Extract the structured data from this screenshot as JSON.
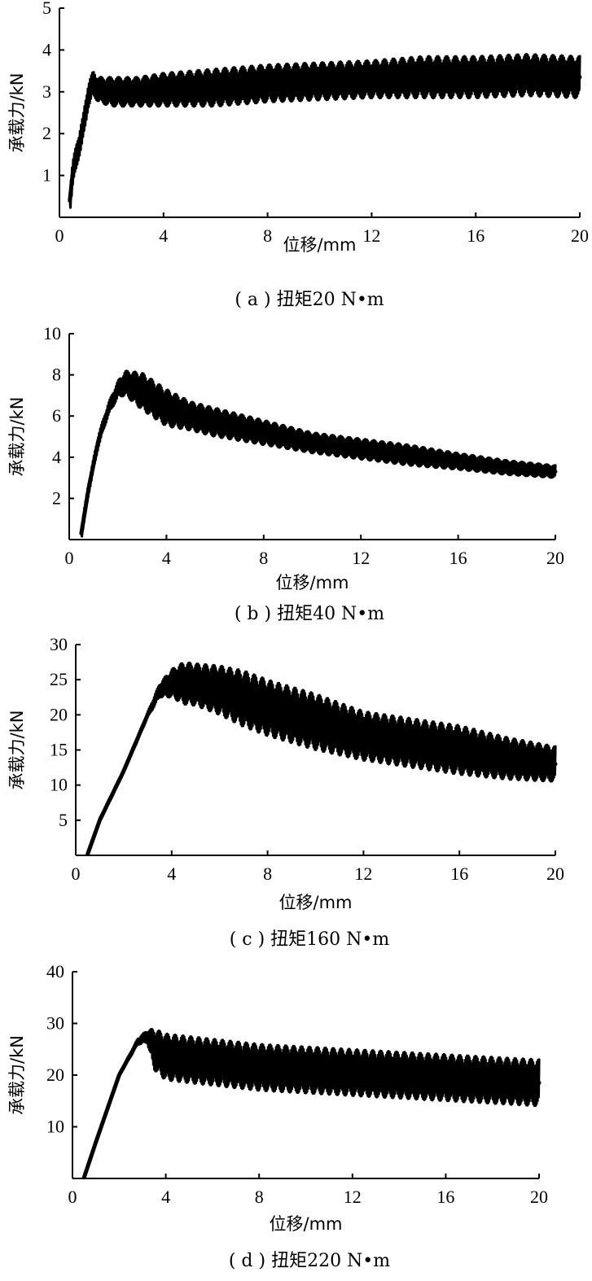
{
  "chart_data": [
    {
      "type": "line",
      "caption": "( a ) 扭矩20 N•m",
      "xlabel": "位移/mm",
      "ylabel": "承载力/kN",
      "xlim": [
        0,
        20
      ],
      "ylim": [
        0,
        5
      ],
      "xticks": [
        "0",
        "4",
        "8",
        "12",
        "16",
        "20"
      ],
      "yticks": [
        "1",
        "2",
        "3",
        "4",
        "5"
      ],
      "grid": false,
      "color": "#000000",
      "series": [
        {
          "x": [
            0.4,
            0.5,
            0.7,
            0.9,
            1.1,
            1.3,
            1.5,
            2,
            3,
            4,
            6,
            8,
            10,
            12,
            14,
            16,
            18,
            20
          ],
          "y": [
            0.4,
            1.0,
            1.6,
            2.1,
            2.9,
            3.2,
            3.05,
            3.0,
            3.0,
            3.05,
            3.1,
            3.2,
            3.25,
            3.3,
            3.35,
            3.35,
            3.4,
            3.35
          ],
          "band": [
            0.3,
            0.3,
            0.3,
            0.3,
            0.3,
            0.3,
            0.3,
            0.35,
            0.35,
            0.4,
            0.45,
            0.45,
            0.45,
            0.45,
            0.5,
            0.5,
            0.5,
            0.5
          ]
        }
      ]
    },
    {
      "type": "line",
      "caption": "( b ) 扭矩40 N•m",
      "xlabel": "位移/mm",
      "ylabel": "承载力/kN",
      "xlim": [
        0,
        20
      ],
      "ylim": [
        0,
        10
      ],
      "xticks": [
        "0",
        "4",
        "8",
        "12",
        "16",
        "20"
      ],
      "yticks": [
        "2",
        "4",
        "6",
        "8",
        "10"
      ],
      "grid": false,
      "color": "#000000",
      "series": [
        {
          "x": [
            0.5,
            0.8,
            1.2,
            1.6,
            2.0,
            2.3,
            3,
            4,
            5,
            6,
            8,
            10,
            12,
            14,
            16,
            18,
            20
          ],
          "y": [
            0.3,
            2.5,
            4.8,
            6.3,
            7.3,
            7.6,
            7.2,
            6.4,
            6.0,
            5.7,
            5.2,
            4.7,
            4.4,
            4.1,
            3.8,
            3.5,
            3.3
          ],
          "band": [
            0.3,
            0.3,
            0.3,
            0.3,
            0.4,
            0.6,
            0.9,
            0.9,
            0.7,
            0.7,
            0.6,
            0.5,
            0.5,
            0.5,
            0.4,
            0.35,
            0.3
          ]
        }
      ]
    },
    {
      "type": "line",
      "caption": "( c ) 扭矩160 N•m",
      "xlabel": "位移/mm",
      "ylabel": "承载力/kN",
      "xlim": [
        0,
        20
      ],
      "ylim": [
        0,
        30
      ],
      "xticks": [
        "0",
        "4",
        "8",
        "12",
        "16",
        "20"
      ],
      "yticks": [
        "5",
        "10",
        "15",
        "20",
        "25",
        "30"
      ],
      "grid": false,
      "color": "#000000",
      "series": [
        {
          "x": [
            0.5,
            1,
            2,
            3,
            3.5,
            4,
            4.5,
            5,
            6,
            7,
            8,
            10,
            12,
            14,
            16,
            18,
            20
          ],
          "y": [
            0.2,
            5,
            12,
            20,
            23.5,
            24.5,
            24.5,
            24.3,
            23.5,
            22.3,
            21,
            19,
            17,
            16,
            15,
            13.8,
            13
          ],
          "band": [
            0.3,
            0.3,
            0.3,
            0.4,
            1,
            2,
            3,
            3,
            3.5,
            4,
            4,
            4,
            3.5,
            3.5,
            3.5,
            3,
            2.5
          ]
        }
      ]
    },
    {
      "type": "line",
      "caption": "( d ) 扭矩220 N•m",
      "xlabel": "位移/mm",
      "ylabel": "承载力/kN",
      "xlim": [
        0,
        20
      ],
      "ylim": [
        0,
        40
      ],
      "xticks": [
        "0",
        "4",
        "8",
        "12",
        "16",
        "20"
      ],
      "yticks": [
        "10",
        "20",
        "30",
        "40"
      ],
      "grid": false,
      "color": "#000000",
      "series": [
        {
          "x": [
            0.5,
            1,
            2,
            2.8,
            3.2,
            3.5,
            4,
            5,
            6,
            8,
            10,
            12,
            14,
            16,
            18,
            20
          ],
          "y": [
            0.2,
            7,
            20,
            26.5,
            27.5,
            25,
            23.5,
            23,
            22.5,
            21.5,
            21,
            20.5,
            20,
            19.5,
            19,
            18.5
          ],
          "band": [
            0.3,
            0.3,
            0.3,
            0.6,
            1.2,
            4,
            4.5,
            4.5,
            4.5,
            4.5,
            4.5,
            4.5,
            4.5,
            4.5,
            4.5,
            4.5
          ]
        }
      ]
    }
  ]
}
